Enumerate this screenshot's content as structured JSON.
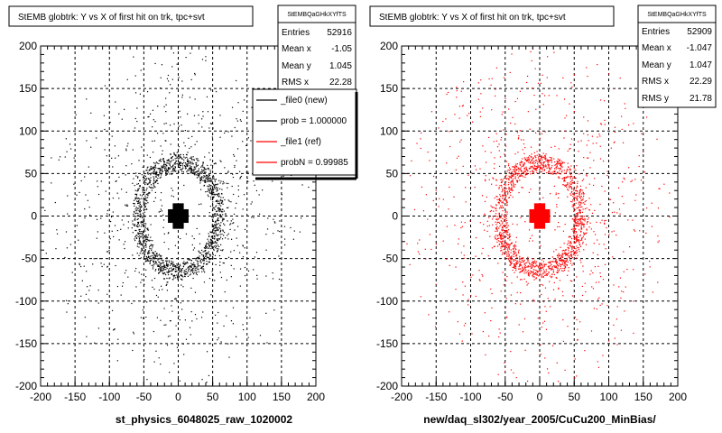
{
  "footer": "",
  "panels": [
    {
      "id": "left",
      "title": "StEMB globtrk: Y vs X of first hit on trk, tpc+svt",
      "xtitle": "st_physics_6048025_raw_1020002",
      "color": "#000000",
      "stats": {
        "name": "StEMBQaGHkXYfTS",
        "rows": [
          {
            "label": "Entries",
            "value": "52916"
          },
          {
            "label": "Mean x",
            "value": "-1.05"
          },
          {
            "label": "Mean y",
            "value": "1.045"
          },
          {
            "label": "RMS x",
            "value": "22.28"
          }
        ]
      },
      "legend": [
        {
          "label": "_file0 (new)",
          "color": "#000000"
        },
        {
          "label": "prob = 1.000000",
          "color": "#000000"
        },
        {
          "label": "_file1 (ref)",
          "color": "#ff0000"
        },
        {
          "label": "probN = 0.99985",
          "color": "#ff0000"
        }
      ]
    },
    {
      "id": "right",
      "title": "StEMB globtrk: Y vs X of first hit on trk, tpc+svt",
      "xtitle": "new/daq_sl302/year_2005/CuCu200_MinBias/",
      "color": "#ff0000",
      "stats": {
        "name": "StEMBQaGHkXYfTS",
        "rows": [
          {
            "label": "Entries",
            "value": "52909"
          },
          {
            "label": "Mean x",
            "value": "-1.047"
          },
          {
            "label": "Mean y",
            "value": "1.047"
          },
          {
            "label": "RMS x",
            "value": "22.29"
          },
          {
            "label": "RMS y",
            "value": "21.78"
          }
        ]
      },
      "legend": []
    }
  ],
  "chart_data": [
    {
      "type": "scatter",
      "title": "StEMB globtrk: Y vs X of first hit on trk, tpc+svt",
      "xlabel": "st_physics_6048025_raw_1020002",
      "ylabel": "",
      "xlim": [
        -200,
        200
      ],
      "ylim": [
        -200,
        200
      ],
      "xticks": [
        -200,
        -150,
        -100,
        -50,
        0,
        50,
        100,
        150,
        200
      ],
      "yticks": [
        -200,
        -150,
        -100,
        -50,
        0,
        50,
        100,
        150,
        200
      ],
      "grid": true,
      "entries": 52916,
      "mean_x": -1.05,
      "mean_y": 1.045,
      "rms_x": 22.28,
      "color": "#000000",
      "structure": {
        "core_cross": {
          "center": [
            0,
            0
          ],
          "half_arm": 15,
          "half_width": 8
        },
        "ring_inner_radius": 50,
        "ring_outer_radius": 68,
        "diffuse_outer_radius": 200
      }
    },
    {
      "type": "scatter",
      "title": "StEMB globtrk: Y vs X of first hit on trk, tpc+svt",
      "xlabel": "new/daq_sl302/year_2005/CuCu200_MinBias/",
      "ylabel": "",
      "xlim": [
        -200,
        200
      ],
      "ylim": [
        -200,
        200
      ],
      "xticks": [
        -200,
        -150,
        -100,
        -50,
        0,
        50,
        100,
        150,
        200
      ],
      "yticks": [
        -200,
        -150,
        -100,
        -50,
        0,
        50,
        100,
        150,
        200
      ],
      "grid": true,
      "entries": 52909,
      "mean_x": -1.047,
      "mean_y": 1.047,
      "rms_x": 22.29,
      "rms_y": 21.78,
      "color": "#ff0000",
      "structure": {
        "core_cross": {
          "center": [
            0,
            0
          ],
          "half_arm": 15,
          "half_width": 8
        },
        "ring_inner_radius": 50,
        "ring_outer_radius": 68,
        "diffuse_outer_radius": 200
      }
    }
  ]
}
